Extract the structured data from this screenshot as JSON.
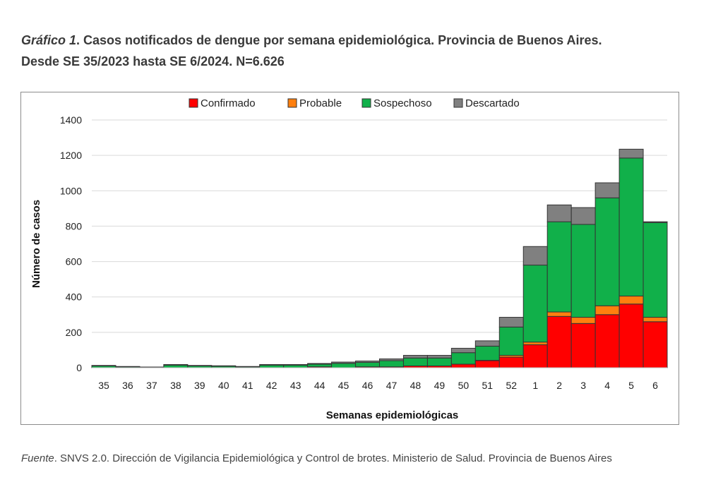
{
  "title": {
    "label": "Gráfico 1",
    "line1": ". Casos notificados de dengue por semana epidemiológica. Provincia de Buenos Aires.",
    "line2": "Desde SE 35/2023 hasta SE 6/2024. N=6.626"
  },
  "source": {
    "label": "Fuente",
    "text": ". SNVS 2.0. Dirección de Vigilancia Epidemiológica y Control de brotes. Ministerio de Salud. Provincia de Buenos Aires"
  },
  "chart_data": {
    "type": "bar",
    "stacked": true,
    "title": "",
    "xlabel": "Semanas epidemiológicas",
    "ylabel": "Número de casos",
    "ylim": [
      0,
      1400
    ],
    "yticks": [
      0,
      200,
      400,
      600,
      800,
      1000,
      1200,
      1400
    ],
    "grid": true,
    "legend_position": "top",
    "categories": [
      "35",
      "36",
      "37",
      "38",
      "39",
      "40",
      "41",
      "42",
      "43",
      "44",
      "45",
      "46",
      "47",
      "48",
      "49",
      "50",
      "51",
      "52",
      "1",
      "2",
      "3",
      "4",
      "5",
      "6"
    ],
    "series": [
      {
        "name": "Confirmado",
        "color": "#ff0000",
        "values": [
          0,
          0,
          0,
          0,
          0,
          0,
          0,
          0,
          0,
          5,
          0,
          5,
          5,
          10,
          10,
          20,
          40,
          60,
          130,
          290,
          250,
          300,
          360,
          260
        ]
      },
      {
        "name": "Probable",
        "color": "#ff7f0e",
        "values": [
          0,
          0,
          0,
          0,
          0,
          0,
          0,
          0,
          0,
          0,
          0,
          0,
          0,
          0,
          0,
          0,
          2,
          10,
          15,
          25,
          35,
          50,
          45,
          25
        ]
      },
      {
        "name": "Sospechoso",
        "color": "#11b04a",
        "values": [
          10,
          5,
          3,
          15,
          10,
          8,
          5,
          15,
          15,
          15,
          25,
          25,
          35,
          45,
          45,
          65,
          80,
          160,
          435,
          510,
          525,
          610,
          780,
          535
        ]
      },
      {
        "name": "Descartado",
        "color": "#808080",
        "values": [
          3,
          2,
          1,
          3,
          3,
          3,
          2,
          3,
          3,
          4,
          7,
          8,
          10,
          15,
          15,
          25,
          30,
          55,
          105,
          95,
          95,
          85,
          50,
          5
        ]
      }
    ]
  }
}
